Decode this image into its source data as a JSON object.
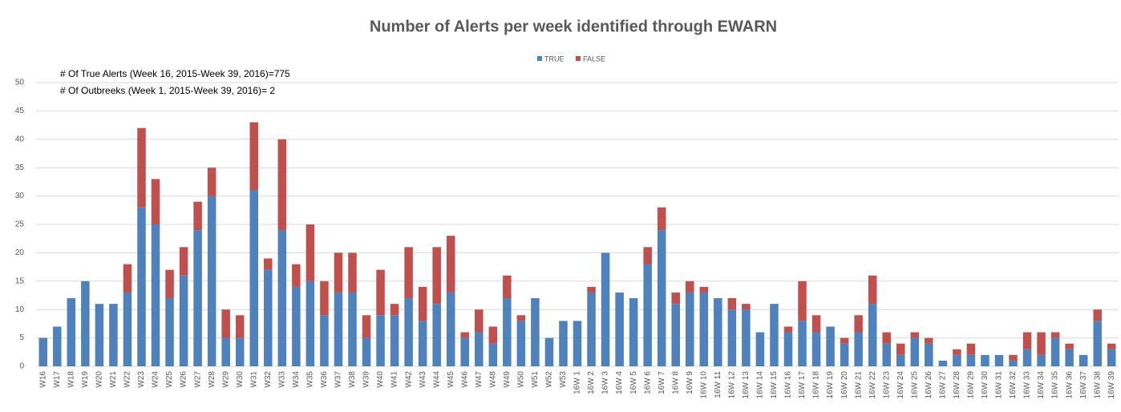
{
  "chart_data": {
    "type": "stacked_bar",
    "title": "Number of Alerts per week identified through EWARN",
    "annotations": [
      "# Of True Alerts (Week 16, 2015-Week 39, 2016)=775",
      "# Of Outbreeks (Week 1, 2015-Week 39, 2016)= 2"
    ],
    "categories": [
      "W16",
      "W17",
      "W18",
      "W19",
      "W20",
      "W21",
      "W22",
      "W23",
      "W24",
      "W25",
      "W26",
      "W27",
      "W28",
      "W29",
      "W30",
      "W31",
      "W32",
      "W33",
      "W34",
      "W35",
      "W36",
      "W37",
      "W38",
      "W39",
      "W40",
      "W41",
      "W42",
      "W43",
      "W44",
      "W45",
      "W46",
      "W47",
      "W48",
      "W49",
      "W50",
      "W51",
      "W52",
      "W53",
      "16W 1",
      "16W 2",
      "16W 3",
      "16W 4",
      "16W 5",
      "16W 6",
      "16W 7",
      "16W 8",
      "16W 9",
      "16W 10",
      "16W 11",
      "16W 12",
      "16W 13",
      "16W 14",
      "16W 15",
      "16W 16",
      "16W 17",
      "16W 18",
      "16W 19",
      "16W 20",
      "16W 21",
      "16W 22",
      "16W 23",
      "16W 24",
      "16W 25",
      "16W 26",
      "16W 27",
      "16W 28",
      "16W 29",
      "16W 30",
      "16W 31",
      "16W 32",
      "16W 33",
      "16W 34",
      "16W 35",
      "16W 36",
      "16W 37",
      "16W 38",
      "16W 39"
    ],
    "series": [
      {
        "name": "TRUE",
        "color": "#4f81bd",
        "values": [
          5,
          7,
          12,
          15,
          11,
          11,
          13,
          28,
          25,
          12,
          16,
          24,
          30,
          5,
          5,
          31,
          17,
          24,
          14,
          15,
          9,
          13,
          13,
          5,
          9,
          9,
          12,
          8,
          11,
          13,
          5,
          6,
          4,
          12,
          8,
          12,
          5,
          8,
          8,
          13,
          20,
          13,
          12,
          18,
          24,
          11,
          13,
          13,
          12,
          10,
          10,
          6,
          11,
          6,
          8,
          6,
          7,
          4,
          6,
          11,
          4,
          2,
          5,
          4,
          1,
          2,
          2,
          2,
          2,
          1,
          3,
          2,
          5,
          3,
          2,
          8,
          3
        ]
      },
      {
        "name": "FALSE",
        "color": "#c0504d",
        "values": [
          0,
          0,
          0,
          0,
          0,
          0,
          5,
          14,
          8,
          5,
          5,
          5,
          5,
          5,
          4,
          12,
          2,
          16,
          4,
          10,
          6,
          7,
          7,
          4,
          8,
          2,
          9,
          6,
          10,
          10,
          1,
          4,
          3,
          4,
          1,
          0,
          0,
          0,
          0,
          1,
          0,
          0,
          0,
          3,
          4,
          2,
          2,
          1,
          0,
          2,
          1,
          0,
          0,
          1,
          7,
          3,
          0,
          1,
          3,
          5,
          2,
          2,
          1,
          1,
          0,
          1,
          2,
          0,
          0,
          1,
          3,
          4,
          1,
          1,
          0,
          2,
          1
        ]
      }
    ],
    "ylim": [
      0,
      50
    ],
    "yticks": [
      0,
      5,
      10,
      15,
      20,
      25,
      30,
      35,
      40,
      45,
      50
    ],
    "grid": true,
    "legend": "top"
  }
}
